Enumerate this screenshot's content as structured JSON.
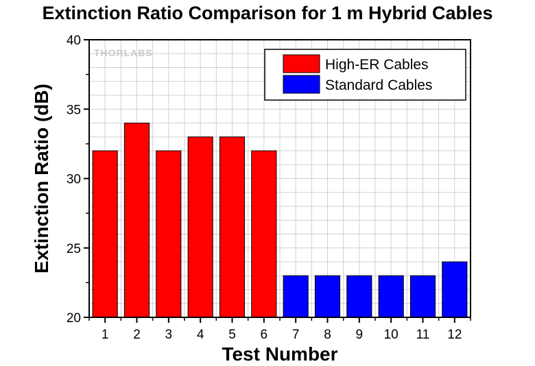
{
  "chart_data": {
    "type": "bar",
    "title": "Extinction Ratio Comparison for 1 m Hybrid Cables",
    "xlabel": "Test Number",
    "ylabel": "Extinction Ratio (dB)",
    "categories": [
      "1",
      "2",
      "3",
      "4",
      "5",
      "6",
      "7",
      "8",
      "9",
      "10",
      "11",
      "12"
    ],
    "series": [
      {
        "name": "High-ER Cables",
        "color": "#ff0000",
        "points": [
          {
            "category": "1",
            "value": 32
          },
          {
            "category": "2",
            "value": 34
          },
          {
            "category": "3",
            "value": 32
          },
          {
            "category": "4",
            "value": 33
          },
          {
            "category": "5",
            "value": 33
          },
          {
            "category": "6",
            "value": 32
          }
        ]
      },
      {
        "name": "Standard Cables",
        "color": "#0000ff",
        "points": [
          {
            "category": "7",
            "value": 23
          },
          {
            "category": "8",
            "value": 23
          },
          {
            "category": "9",
            "value": 23
          },
          {
            "category": "10",
            "value": 23
          },
          {
            "category": "11",
            "value": 23
          },
          {
            "category": "12",
            "value": 24
          }
        ]
      }
    ],
    "ylim": [
      20,
      40
    ],
    "yticks": [
      20,
      25,
      30,
      35,
      40
    ],
    "grid": true,
    "legend_position": "top-right"
  },
  "watermark": "THORLABS"
}
